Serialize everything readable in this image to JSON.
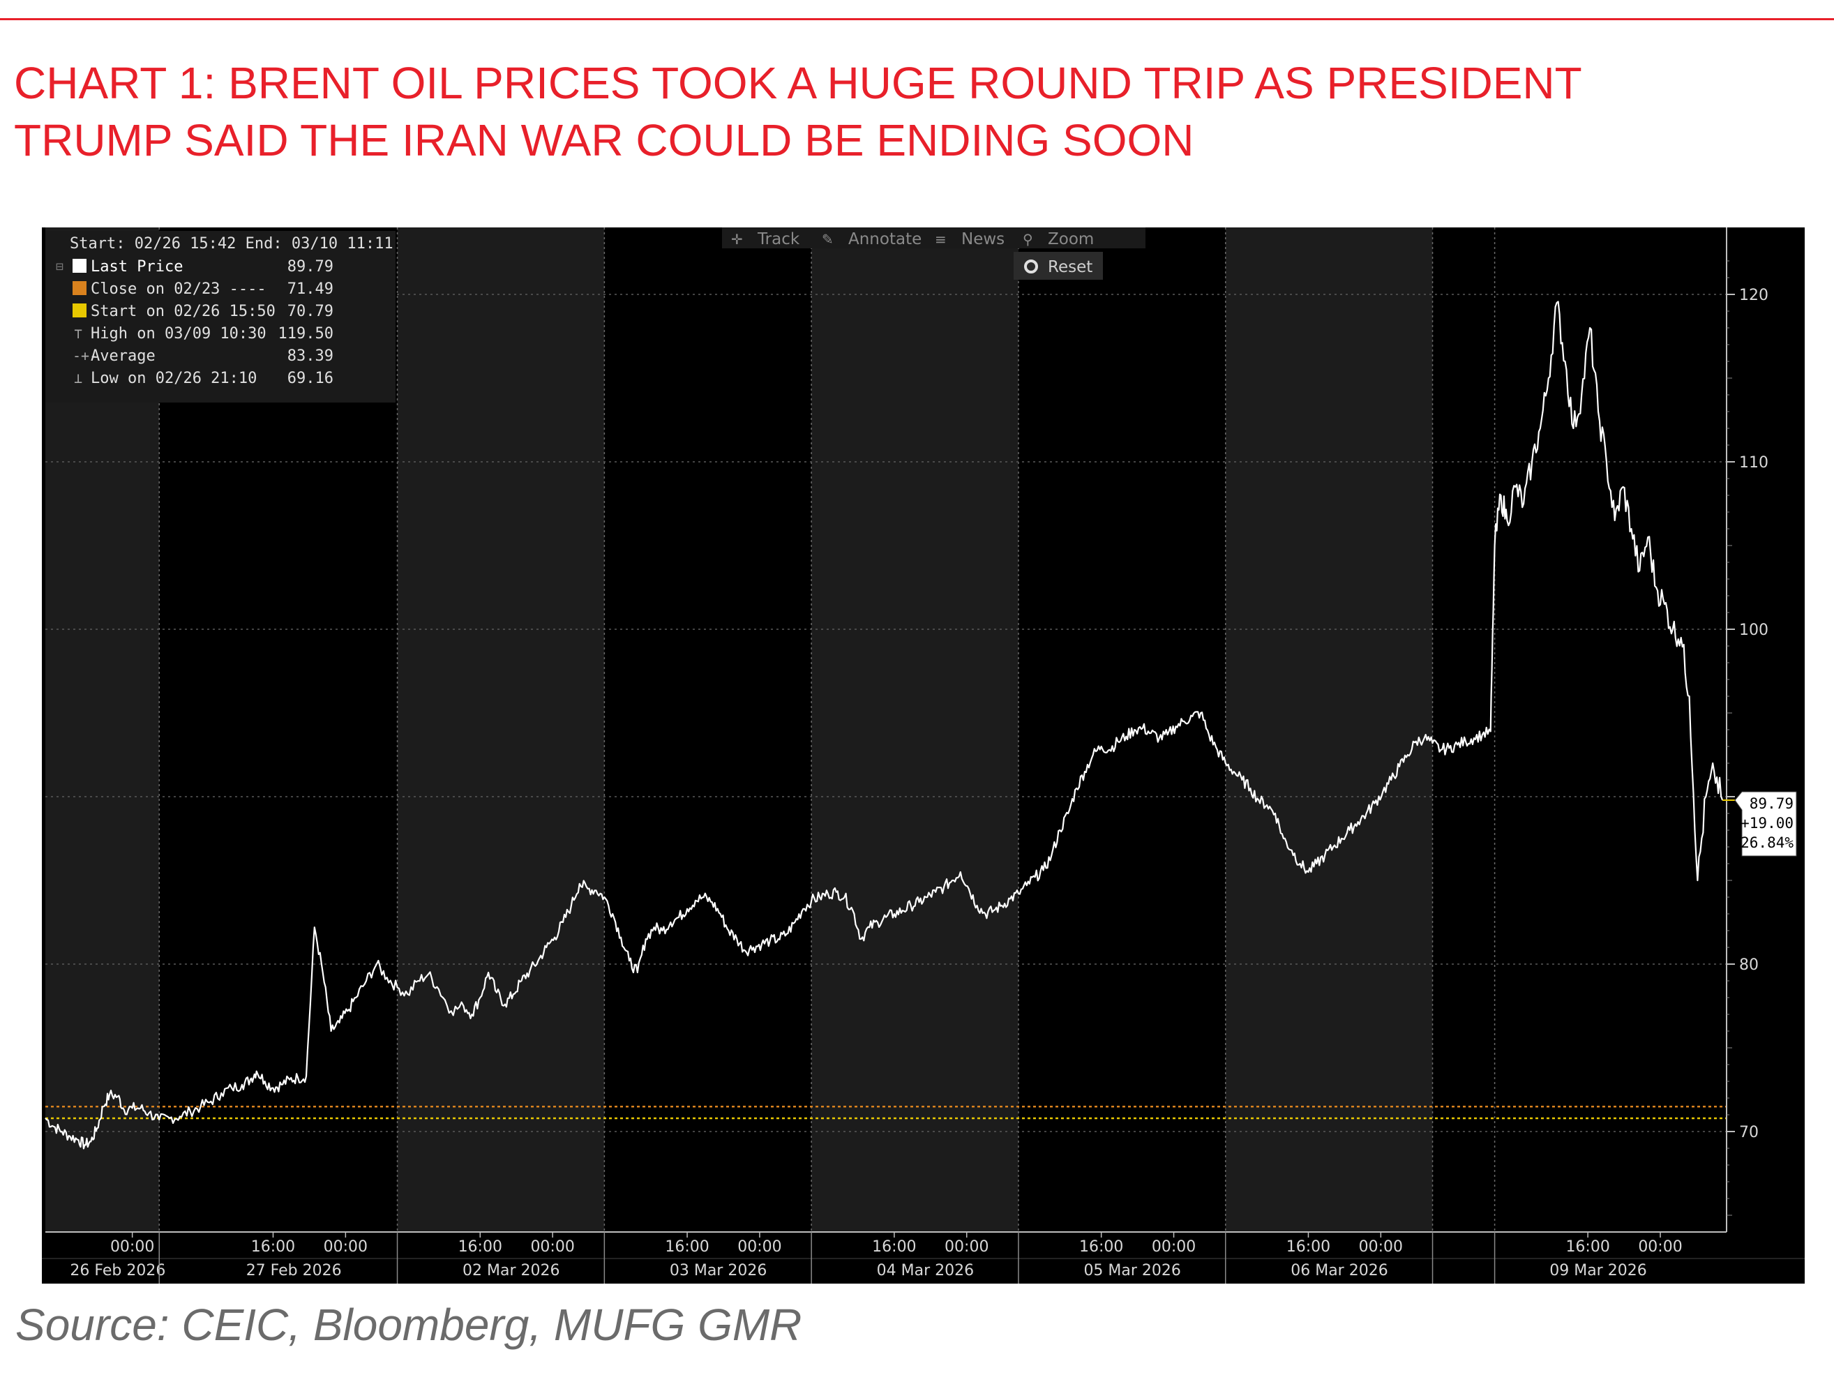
{
  "title": {
    "line1": "CHART 1: BRENT OIL PRICES TOOK A HUGE ROUND TRIP AS PRESIDENT",
    "line2": "TRUMP SAID THE IRAN WAR COULD BE ENDING SOON"
  },
  "source": "Source: CEIC, Bloomberg, MUFG GMR",
  "colors": {
    "title_red": "#e8202a",
    "chart_bg": "#000000",
    "session_shade": "#1c1c1c",
    "price_line": "#ffffff",
    "yellow": "#e8c800",
    "orange": "#d9821e"
  },
  "toolbar": {
    "track": "Track",
    "annotate": "Annotate",
    "news": "News",
    "zoom": "Zoom",
    "reset": "Reset"
  },
  "legend": {
    "header": "Start: 02/26 15:42 End: 03/10 11:11",
    "rows": [
      {
        "label": "Last Price",
        "value": "89.79",
        "icon": "white-square"
      },
      {
        "label": "Close on 02/23 ----",
        "value": "71.49",
        "icon": "orange-square"
      },
      {
        "label": "Start on 02/26 15:50",
        "value": "70.79",
        "icon": "yellow-square"
      },
      {
        "label": "High on 03/09 10:30",
        "value": "119.50",
        "icon": "high-marker"
      },
      {
        "label": "Average",
        "value": "83.39",
        "icon": "average-marker"
      },
      {
        "label": "Low on 02/26 21:10",
        "value": "69.16",
        "icon": "low-marker"
      }
    ]
  },
  "last_price_box": {
    "price": "89.79",
    "change": "+19.00",
    "percent": "26.84%"
  },
  "chart_data": {
    "type": "line",
    "series": [
      {
        "name": "Brent Oil Last Price",
        "x": [
          0,
          0.04,
          0.08,
          0.12,
          0.16,
          0.19,
          0.22,
          0.25,
          0.28,
          0.31,
          0.35,
          0.38,
          0.42,
          0.46,
          0.5,
          0.55,
          0.6,
          0.65,
          0.7,
          0.75,
          0.8,
          0.85,
          0.9,
          0.95,
          0.99,
          1.02,
          1.06,
          1.1,
          1.14,
          1.18,
          1.22,
          1.26,
          1.3,
          1.34,
          1.38,
          1.42,
          1.46,
          1.5,
          1.55,
          1.6,
          1.65,
          1.7,
          1.75,
          1.8,
          1.85,
          1.9,
          1.96,
          2.02,
          2.06,
          2.1,
          2.14,
          2.18,
          2.22,
          2.26,
          2.3,
          2.34,
          2.38,
          2.42,
          2.46,
          2.5,
          2.54,
          2.58,
          2.62,
          2.66,
          2.7,
          2.74,
          2.78,
          2.82,
          2.86,
          2.9,
          2.94,
          2.98,
          3.02,
          3.06,
          3.1,
          3.14,
          3.18,
          3.22,
          3.26,
          3.3,
          3.34,
          3.38,
          3.42,
          3.46,
          3.5,
          3.54,
          3.58,
          3.62,
          3.66,
          3.7,
          3.74,
          3.78,
          3.82,
          3.86,
          3.9,
          3.94,
          3.98,
          4.02,
          4.06,
          4.1,
          4.14,
          4.18,
          4.22,
          4.26,
          4.3,
          4.34,
          4.38,
          4.42,
          4.46,
          4.5,
          4.54,
          4.58,
          4.62,
          4.66,
          4.7,
          4.74,
          4.78,
          4.82,
          4.86,
          4.9,
          4.94,
          4.98,
          5.02,
          5.06,
          5.1,
          5.14,
          5.18,
          5.22,
          5.26,
          5.3,
          5.34,
          5.38,
          5.42,
          5.46,
          5.5,
          5.54,
          5.58,
          5.62,
          5.66,
          5.7,
          5.74,
          5.78,
          5.82,
          5.86,
          5.9,
          5.94,
          5.98,
          6.02,
          6.06,
          6.1,
          6.14,
          6.18,
          6.22,
          6.26,
          6.3,
          6.34,
          6.38,
          6.42,
          6.46,
          6.5,
          6.54,
          6.58,
          6.62,
          6.66,
          6.7,
          6.74,
          6.78,
          6.82,
          6.86,
          6.9,
          6.94,
          6.98,
          7.0,
          7.03,
          7.06,
          7.1,
          7.14,
          7.18,
          7.22,
          7.26,
          7.3,
          7.34,
          7.38,
          7.42,
          7.46,
          7.5,
          7.54,
          7.58,
          7.62,
          7.66,
          7.7,
          7.74,
          7.78,
          7.82,
          7.86,
          7.9,
          7.94,
          7.98,
          8.02,
          8.06,
          8.1
        ],
        "values": [
          70.8,
          70.3,
          70.0,
          69.7,
          69.5,
          69.2,
          69.4,
          70.2,
          71.5,
          72.2,
          72.1,
          71.3,
          71.4,
          71.4,
          71.1,
          70.7,
          70.8,
          70.9,
          71.2,
          71.5,
          71.8,
          72.3,
          72.6,
          72.8,
          73.1,
          73.6,
          73.0,
          72.6,
          72.8,
          73.1,
          73.2,
          73.3,
          82.2,
          79.5,
          76.0,
          76.5,
          77.2,
          78.0,
          79.0,
          80.0,
          79.2,
          78.6,
          78.2,
          79.0,
          79.4,
          78.5,
          77.2,
          77.5,
          77.0,
          78.0,
          79.5,
          78.3,
          77.6,
          78.2,
          79.0,
          79.6,
          80.2,
          81.0,
          81.6,
          82.5,
          83.5,
          84.8,
          84.5,
          84.4,
          84.0,
          83.0,
          81.6,
          80.2,
          79.5,
          81.5,
          82.2,
          82.0,
          82.5,
          82.8,
          83.3,
          83.8,
          84.0,
          83.7,
          83.0,
          82.0,
          81.5,
          80.8,
          81.0,
          81.2,
          81.4,
          81.5,
          81.8,
          82.5,
          83.3,
          83.8,
          84.0,
          84.2,
          84.3,
          84.0,
          83.2,
          81.5,
          82.2,
          82.5,
          82.8,
          83.0,
          83.2,
          83.5,
          83.7,
          84.0,
          84.3,
          84.6,
          85.0,
          85.5,
          84.5,
          83.5,
          83.0,
          83.2,
          83.5,
          83.9,
          84.2,
          84.7,
          85.2,
          85.6,
          86.5,
          88.0,
          89.0,
          90.5,
          91.5,
          92.5,
          93.0,
          92.8,
          93.3,
          93.6,
          94.0,
          94.1,
          93.8,
          93.5,
          93.7,
          94.2,
          94.5,
          94.8,
          95.0,
          93.7,
          92.8,
          92.0,
          91.5,
          91.0,
          90.5,
          89.8,
          89.5,
          89.0,
          87.5,
          86.8,
          86.0,
          85.5,
          86.0,
          86.5,
          87.0,
          87.5,
          88.0,
          88.5,
          89.0,
          89.6,
          90.3,
          91.0,
          91.8,
          92.5,
          93.3,
          93.5,
          93.2,
          92.8,
          92.9,
          93.1,
          93.3,
          93.5,
          93.7,
          93.9,
          105.0,
          108.0,
          106.5,
          108.5,
          107.5,
          110.0,
          112.0,
          115.0,
          119.5,
          116.0,
          112.0,
          114.0,
          118.0,
          113.0,
          110.0,
          106.5,
          108.5,
          106.0,
          103.5,
          105.5,
          102.5,
          101.5,
          100.0,
          99.5,
          96.0,
          85.0,
          90.0,
          91.5,
          89.79
        ]
      }
    ],
    "reference_lines": [
      {
        "name": "Close on 02/23",
        "value": 71.49,
        "color": "orange",
        "style": "dotted"
      },
      {
        "name": "Start on 02/26 15:50",
        "value": 70.79,
        "color": "yellow",
        "style": "dotted"
      }
    ],
    "ylim": [
      64,
      124
    ],
    "y_ticks": [
      70,
      80,
      90,
      100,
      110,
      120
    ],
    "y_tick_labels": [
      "70",
      "80",
      "",
      "100",
      "110",
      "120"
    ],
    "xlim": [
      0,
      8.12
    ],
    "x_ticks": [
      {
        "pos": 0.42,
        "label": "00:00"
      },
      {
        "pos": 1.1,
        "label": "16:00"
      },
      {
        "pos": 1.45,
        "label": "00:00"
      },
      {
        "pos": 2.1,
        "label": "16:00"
      },
      {
        "pos": 2.45,
        "label": "00:00"
      },
      {
        "pos": 3.1,
        "label": "16:00"
      },
      {
        "pos": 3.45,
        "label": "00:00"
      },
      {
        "pos": 4.1,
        "label": "16:00"
      },
      {
        "pos": 4.45,
        "label": "00:00"
      },
      {
        "pos": 5.1,
        "label": "16:00"
      },
      {
        "pos": 5.45,
        "label": "00:00"
      },
      {
        "pos": 6.1,
        "label": "16:00"
      },
      {
        "pos": 6.45,
        "label": "00:00"
      },
      {
        "pos": 7.45,
        "label": "16:00"
      },
      {
        "pos": 7.8,
        "label": "00:00"
      }
    ],
    "date_labels": [
      {
        "pos": 0.35,
        "label": "26 Feb 2026"
      },
      {
        "pos": 1.2,
        "label": "27 Feb 2026"
      },
      {
        "pos": 2.25,
        "label": "02 Mar 2026"
      },
      {
        "pos": 3.25,
        "label": "03 Mar 2026"
      },
      {
        "pos": 4.25,
        "label": "04 Mar 2026"
      },
      {
        "pos": 5.25,
        "label": "05 Mar 2026"
      },
      {
        "pos": 6.25,
        "label": "06 Mar 2026"
      },
      {
        "pos": 7.5,
        "label": "09 Mar 2026"
      }
    ],
    "day_boundaries": [
      1.7,
      3.7,
      4.8,
      5.8,
      6.8,
      7.8,
      8.8
    ],
    "shaded_sessions": [
      [
        0.0,
        0.7
      ],
      [
        2.0,
        2.0
      ],
      [
        1.7,
        1.7
      ]
    ],
    "grid": true
  }
}
